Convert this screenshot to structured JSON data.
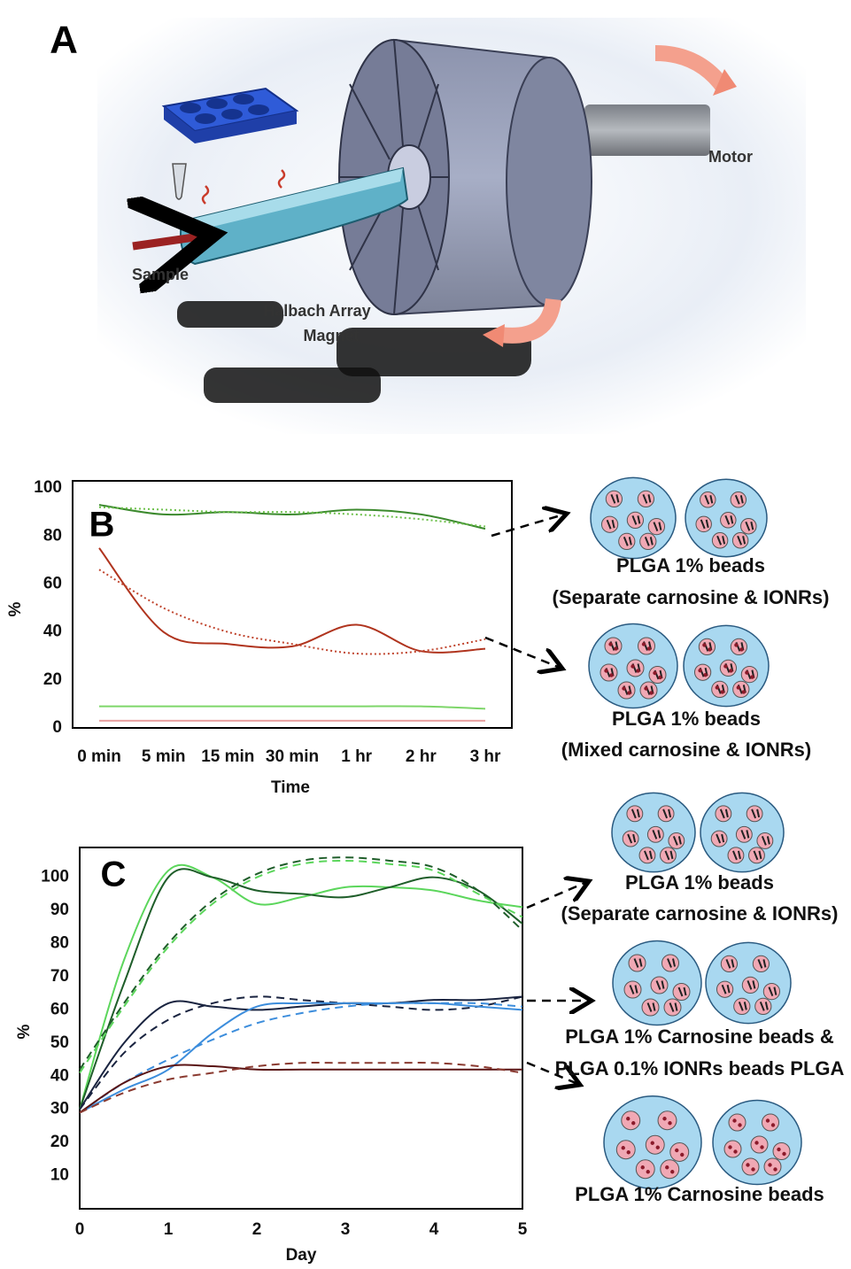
{
  "panel_a": {
    "label": "A",
    "motor": "Motor",
    "sample": "Sample",
    "magnet": [
      "Halbach Array",
      "Magnet"
    ]
  },
  "schematics": [
    {
      "lines": [
        "PLGA 1% beads",
        "(Separate carnosine & IONRs)"
      ]
    },
    {
      "lines": [
        "PLGA 1% beads",
        "(Mixed carnosine & IONRs)"
      ]
    },
    {
      "lines": [
        "PLGA 1% beads",
        "(Separate carnosine & IONRs)"
      ]
    },
    {
      "lines": [
        "PLGA 1% Carnosine beads &",
        "PLGA 0.1% IONRs beads PLGA"
      ]
    },
    {
      "lines": [
        "PLGA 1% Carnosine beads"
      ]
    }
  ],
  "chart_data": [
    {
      "type": "line",
      "label": "B",
      "x_label": "Time",
      "y_label": "%",
      "categories": [
        "0 min",
        "5 min",
        "15 min",
        "30 min",
        "1 hr",
        "2 hr",
        "3 hr"
      ],
      "ylim": [
        0,
        103
      ],
      "yticks": [
        0,
        20,
        40,
        60,
        80,
        100
      ],
      "series": [
        {
          "color": "#3c8a2e",
          "style": "solid",
          "values": [
            93,
            89,
            90,
            89,
            91,
            89,
            83
          ]
        },
        {
          "color": "#6cc04a",
          "style": "dotted",
          "values": [
            92,
            91,
            90,
            90,
            89,
            87,
            84
          ]
        },
        {
          "color": "#b0341e",
          "style": "solid",
          "values": [
            75,
            40,
            35,
            34,
            43,
            32,
            33
          ]
        },
        {
          "color": "#c0452e",
          "style": "dotted",
          "values": [
            66,
            50,
            40,
            35,
            31,
            32,
            37
          ]
        },
        {
          "color": "#7ed66a",
          "style": "solid",
          "values": [
            9,
            9,
            9,
            9,
            9,
            9,
            8
          ]
        },
        {
          "color": "#e8a0a0",
          "style": "solid",
          "values": [
            3,
            3,
            3,
            3,
            3,
            3,
            3
          ]
        }
      ]
    },
    {
      "type": "line",
      "label": "C",
      "x_label": "Day",
      "y_label": "%",
      "x": [
        0,
        0.5,
        1,
        1.5,
        2,
        2.5,
        3,
        3.5,
        4,
        4.5,
        5
      ],
      "xlim": [
        0,
        5
      ],
      "xticks": [
        0,
        1,
        2,
        3,
        4,
        5
      ],
      "ylim": [
        0,
        109
      ],
      "yticks": [
        10,
        20,
        30,
        40,
        50,
        60,
        70,
        80,
        90,
        100
      ],
      "series": [
        {
          "color": "#5cd65c",
          "style": "solid",
          "values": [
            30,
            75,
            102,
            100,
            92,
            94,
            97,
            97,
            96,
            93,
            91
          ]
        },
        {
          "color": "#1f5e2a",
          "style": "solid",
          "values": [
            30,
            68,
            100,
            100,
            96,
            95,
            94,
            97,
            100,
            96,
            86
          ]
        },
        {
          "color": "#1f5e2a",
          "style": "dashed",
          "values": [
            42,
            62,
            80,
            93,
            101,
            105,
            106,
            105,
            103,
            96,
            84
          ]
        },
        {
          "color": "#5cd65c",
          "style": "dashed",
          "values": [
            41,
            61,
            79,
            92,
            100,
            104,
            105,
            104,
            102,
            95,
            88
          ]
        },
        {
          "color": "#1a2440",
          "style": "solid",
          "values": [
            30,
            50,
            62,
            61,
            60,
            61,
            62,
            62,
            63,
            63,
            64
          ]
        },
        {
          "color": "#1a2440",
          "style": "dashed",
          "values": [
            30,
            47,
            57,
            62,
            64,
            63,
            62,
            61,
            60,
            61,
            64
          ]
        },
        {
          "color": "#3c8ddc",
          "style": "solid",
          "values": [
            29,
            36,
            42,
            53,
            61,
            62,
            62,
            62,
            62,
            61,
            60
          ]
        },
        {
          "color": "#3c8ddc",
          "style": "dashed",
          "values": [
            29,
            38,
            45,
            51,
            56,
            59,
            61,
            62,
            62,
            62,
            61
          ]
        },
        {
          "color": "#5a1414",
          "style": "solid",
          "values": [
            29,
            38,
            43,
            43,
            42,
            42,
            42,
            42,
            42,
            42,
            42
          ]
        },
        {
          "color": "#8a3a30",
          "style": "dashed",
          "values": [
            29,
            35,
            39,
            41,
            43,
            44,
            44,
            44,
            44,
            43,
            41
          ]
        }
      ]
    }
  ]
}
